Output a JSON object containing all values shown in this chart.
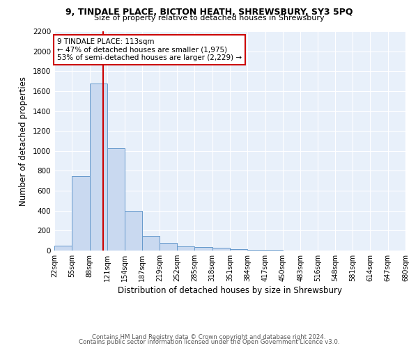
{
  "title1": "9, TINDALE PLACE, BICTON HEATH, SHREWSBURY, SY3 5PQ",
  "title2": "Size of property relative to detached houses in Shrewsbury",
  "xlabel": "Distribution of detached houses by size in Shrewsbury",
  "ylabel": "Number of detached properties",
  "footer1": "Contains HM Land Registry data © Crown copyright and database right 2024.",
  "footer2": "Contains public sector information licensed under the Open Government Licence v3.0.",
  "annotation_line1": "9 TINDALE PLACE: 113sqm",
  "annotation_line2": "← 47% of detached houses are smaller (1,975)",
  "annotation_line3": "53% of semi-detached houses are larger (2,229) →",
  "bar_color": "#c9d9f0",
  "bar_edge_color": "#6699cc",
  "background_color": "#e8f0fa",
  "vline_color": "#cc0000",
  "vline_x": 113,
  "annotation_box_color": "#ffffff",
  "annotation_box_edge": "#cc0000",
  "bin_edges": [
    22,
    55,
    88,
    121,
    154,
    187,
    219,
    252,
    285,
    318,
    351,
    384,
    417,
    450,
    483,
    516,
    548,
    581,
    614,
    647,
    680
  ],
  "bin_labels": [
    "22sqm",
    "55sqm",
    "88sqm",
    "121sqm",
    "154sqm",
    "187sqm",
    "219sqm",
    "252sqm",
    "285sqm",
    "318sqm",
    "351sqm",
    "384sqm",
    "417sqm",
    "450sqm",
    "483sqm",
    "516sqm",
    "548sqm",
    "581sqm",
    "614sqm",
    "647sqm",
    "680sqm"
  ],
  "bar_heights": [
    50,
    750,
    1675,
    1025,
    400,
    150,
    80,
    45,
    35,
    25,
    15,
    10,
    5,
    0,
    0,
    0,
    0,
    0,
    0,
    0
  ],
  "ylim": [
    0,
    2200
  ],
  "yticks": [
    0,
    200,
    400,
    600,
    800,
    1000,
    1200,
    1400,
    1600,
    1800,
    2000,
    2200
  ],
  "figsize": [
    6.0,
    5.0
  ],
  "dpi": 100
}
